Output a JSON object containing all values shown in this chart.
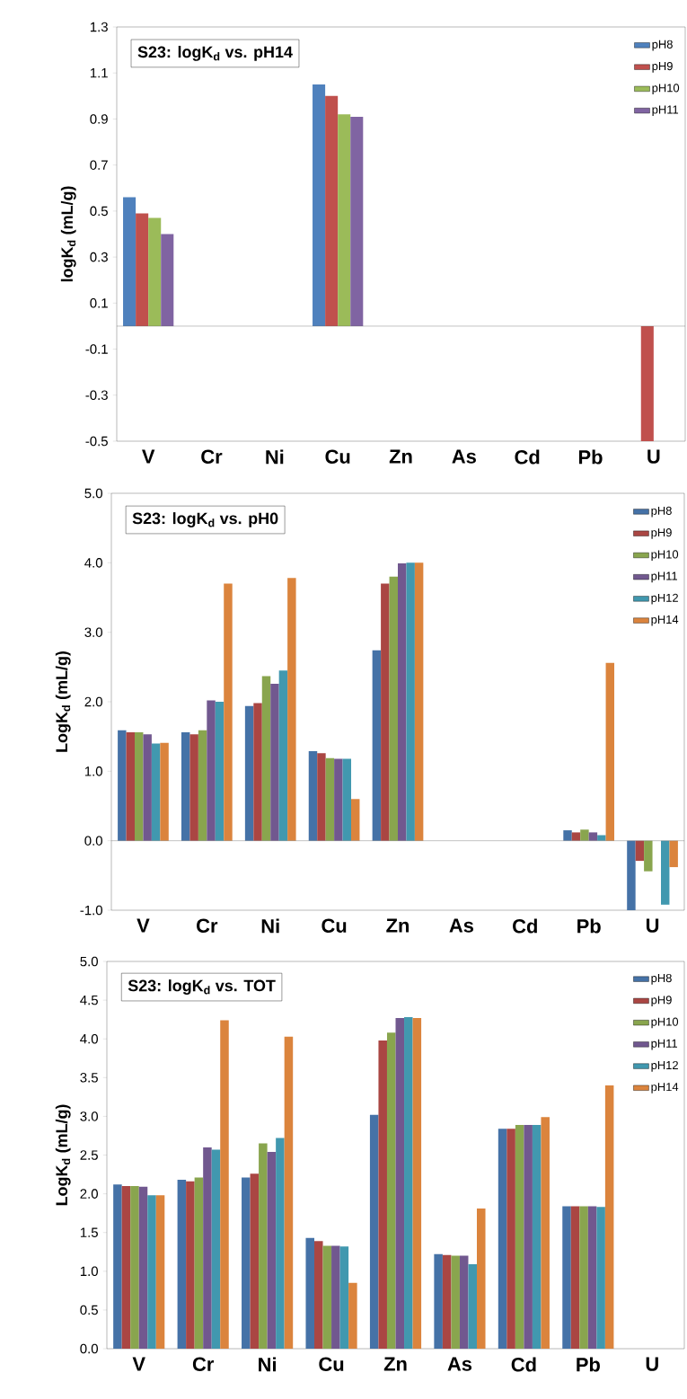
{
  "chart_data": [
    {
      "type": "bar",
      "title": "S23: logK$_{d}$ vs. pH14",
      "ylabel": "logK$_{d}$ (mL/g)",
      "categories": [
        "V",
        "Cr",
        "Ni",
        "Cu",
        "Zn",
        "As",
        "Cd",
        "Pb",
        "U"
      ],
      "series": [
        {
          "name": "pH8",
          "color": "#4f81bd",
          "values": [
            0.56,
            null,
            null,
            1.05,
            null,
            null,
            null,
            null,
            null
          ]
        },
        {
          "name": "pH9",
          "color": "#c0504d",
          "values": [
            0.49,
            null,
            null,
            1.0,
            null,
            null,
            null,
            null,
            -0.5
          ]
        },
        {
          "name": "pH10",
          "color": "#9bbb59",
          "values": [
            0.47,
            null,
            null,
            0.92,
            null,
            null,
            null,
            null,
            null
          ]
        },
        {
          "name": "pH11",
          "color": "#8064a2",
          "values": [
            0.4,
            null,
            null,
            0.91,
            null,
            null,
            null,
            null,
            null
          ]
        }
      ],
      "ylim": [
        -0.5,
        1.3
      ],
      "yticks": [
        -0.5,
        -0.3,
        -0.1,
        0.1,
        0.3,
        0.5,
        0.7,
        0.9,
        1.1,
        1.3
      ],
      "legend": "top right"
    },
    {
      "type": "bar",
      "title": "S23: logK$_{d}$ vs. pH0",
      "ylabel": "LogK$_{d}$ (mL/g)",
      "categories": [
        "V",
        "Cr",
        "Ni",
        "Cu",
        "Zn",
        "As",
        "Cd",
        "Pb",
        "U"
      ],
      "series": [
        {
          "name": "pH8",
          "color": "#4572a7",
          "values": [
            1.59,
            1.56,
            1.94,
            1.29,
            2.74,
            null,
            null,
            0.15,
            -1.0
          ]
        },
        {
          "name": "pH9",
          "color": "#aa4643",
          "values": [
            1.56,
            1.53,
            1.98,
            1.26,
            3.7,
            null,
            null,
            0.12,
            -0.29
          ]
        },
        {
          "name": "pH10",
          "color": "#89a54e",
          "values": [
            1.56,
            1.59,
            2.37,
            1.19,
            3.8,
            null,
            null,
            0.16,
            -0.44
          ]
        },
        {
          "name": "pH11",
          "color": "#71588f",
          "values": [
            1.53,
            2.02,
            2.26,
            1.18,
            3.99,
            null,
            null,
            0.12,
            null
          ]
        },
        {
          "name": "pH12",
          "color": "#4198af",
          "values": [
            1.4,
            2.0,
            2.45,
            1.18,
            4.0,
            null,
            null,
            0.08,
            -0.92
          ]
        },
        {
          "name": "pH14",
          "color": "#db843d",
          "values": [
            1.41,
            3.7,
            3.78,
            0.6,
            4.0,
            null,
            null,
            2.56,
            -0.38
          ]
        }
      ],
      "ylim": [
        -1.0,
        5.0
      ],
      "yticks": [
        {
          "value": -1,
          "label": "-1.0"
        },
        {
          "value": 0,
          "label": "0.0"
        },
        {
          "value": 1,
          "label": "1.0"
        },
        {
          "value": 2,
          "label": "2.0"
        },
        {
          "value": 3,
          "label": "3.0"
        },
        {
          "value": 4,
          "label": "4.0"
        },
        {
          "value": 5,
          "label": "5.0"
        }
      ],
      "legend": "top right"
    },
    {
      "type": "bar",
      "title": "S23: logK$_{d}$ vs. TOT",
      "ylabel": "LogK$_{d}$ (mL/g)",
      "categories": [
        "V",
        "Cr",
        "Ni",
        "Cu",
        "Zn",
        "As",
        "Cd",
        "Pb",
        "U"
      ],
      "series": [
        {
          "name": "pH8",
          "color": "#4572a7",
          "values": [
            2.12,
            2.18,
            2.21,
            1.43,
            3.02,
            1.22,
            2.84,
            1.84,
            null
          ]
        },
        {
          "name": "pH9",
          "color": "#aa4643",
          "values": [
            2.1,
            2.16,
            2.26,
            1.39,
            3.98,
            1.21,
            2.84,
            1.84,
            null
          ]
        },
        {
          "name": "pH10",
          "color": "#89a54e",
          "values": [
            2.1,
            2.21,
            2.65,
            1.33,
            4.08,
            1.2,
            2.89,
            1.84,
            null
          ]
        },
        {
          "name": "pH11",
          "color": "#71588f",
          "values": [
            2.09,
            2.6,
            2.54,
            1.33,
            4.27,
            1.2,
            2.89,
            1.84,
            null
          ]
        },
        {
          "name": "pH12",
          "color": "#4198af",
          "values": [
            1.98,
            2.57,
            2.72,
            1.32,
            4.28,
            1.09,
            2.89,
            1.83,
            null
          ]
        },
        {
          "name": "pH14",
          "color": "#db843d",
          "values": [
            1.98,
            4.24,
            4.03,
            0.85,
            4.27,
            1.81,
            2.99,
            3.4,
            null
          ]
        }
      ],
      "ylim": [
        0,
        5.0
      ],
      "yticks": [
        {
          "value": 0,
          "label": "0.0"
        },
        0.5,
        {
          "value": 1,
          "label": "1.0"
        },
        1.5,
        {
          "value": 2,
          "label": "2.0"
        },
        2.5,
        {
          "value": 3,
          "label": "3.0"
        },
        3.5,
        {
          "value": 4,
          "label": "4.0"
        },
        4.5,
        {
          "value": 5,
          "label": "5.0"
        }
      ],
      "legend": "top right"
    }
  ]
}
